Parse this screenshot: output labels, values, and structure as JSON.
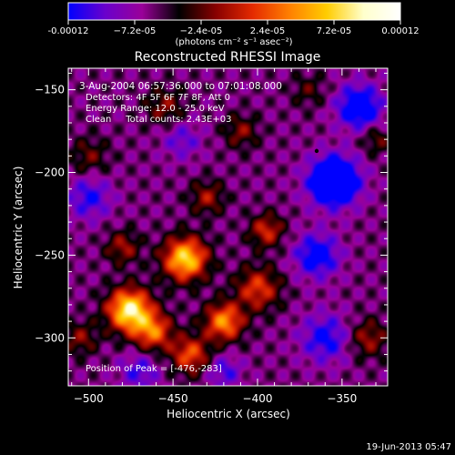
{
  "chart_data": {
    "type": "heatmap",
    "title": "Reconstructed RHESSI Image",
    "xlabel": "Heliocentric X (arcsec)",
    "ylabel": "Heliocentric Y (arcsec)",
    "xlim": [
      -512,
      -323
    ],
    "ylim": [
      -329,
      -137
    ],
    "x_ticks": [
      -500,
      -450,
      -400,
      -350
    ],
    "y_ticks": [
      -150,
      -200,
      -250,
      -300
    ],
    "colorbar": {
      "range": [
        -0.00012,
        0.00012
      ],
      "ticks": [
        -0.00012,
        -7.2e-05,
        -2.4e-05,
        2.4e-05,
        7.2e-05,
        0.00012
      ],
      "tick_labels": [
        "-0.00012",
        "−7.2e-05",
        "−2.4e-05",
        "2.4e-05",
        "7.2e-05",
        "0.00012"
      ],
      "unit_label": "(photons cm⁻² s⁻¹ asec⁻²)",
      "stops": [
        "#0000ff",
        "#6a00cc",
        "#9a0099",
        "#000000",
        "#880000",
        "#e52a00",
        "#ff8000",
        "#ffcc00",
        "#ffffcc",
        "#ffffff"
      ]
    },
    "annotations": [
      "3-Aug-2004 06:57:36.000 to 07:01:08.000",
      "Detectors: 4F 5F 6F 7F 8F, Att 0",
      "Energy Range: 12.0 - 25.0 keV",
      "Clean     Total counts: 2.43E+03"
    ],
    "peak_label": "Position of Peak = [-476,-283]",
    "marker": {
      "x": -365,
      "y": -187
    },
    "sources": [
      {
        "x": -476,
        "y": -283,
        "amp": 1.0,
        "sigma": 9
      },
      {
        "x": -443,
        "y": -252,
        "amp": 0.9,
        "sigma": 9
      },
      {
        "x": -420,
        "y": -290,
        "amp": 0.7,
        "sigma": 8
      },
      {
        "x": -462,
        "y": -296,
        "amp": 0.6,
        "sigma": 8
      },
      {
        "x": -440,
        "y": -310,
        "amp": 0.55,
        "sigma": 8
      },
      {
        "x": -400,
        "y": -270,
        "amp": 0.5,
        "sigma": 9
      },
      {
        "x": -395,
        "y": -235,
        "amp": 0.45,
        "sigma": 7
      },
      {
        "x": -430,
        "y": -215,
        "amp": 0.35,
        "sigma": 7
      },
      {
        "x": -410,
        "y": -175,
        "amp": 0.3,
        "sigma": 7
      },
      {
        "x": -480,
        "y": -245,
        "amp": 0.35,
        "sigma": 7
      },
      {
        "x": -505,
        "y": -300,
        "amp": 0.3,
        "sigma": 7
      },
      {
        "x": -500,
        "y": -190,
        "amp": 0.25,
        "sigma": 8
      },
      {
        "x": -455,
        "y": -160,
        "amp": 0.3,
        "sigma": 8
      },
      {
        "x": -335,
        "y": -300,
        "amp": 0.35,
        "sigma": 8
      },
      {
        "x": -330,
        "y": -180,
        "amp": 0.25,
        "sigma": 6
      },
      {
        "x": -370,
        "y": -150,
        "amp": 0.2,
        "sigma": 7
      },
      {
        "x": -355,
        "y": -205,
        "amp": -0.9,
        "sigma": 10
      },
      {
        "x": -340,
        "y": -160,
        "amp": -0.6,
        "sigma": 9
      },
      {
        "x": -365,
        "y": -250,
        "amp": -0.5,
        "sigma": 9
      },
      {
        "x": -360,
        "y": -300,
        "amp": -0.4,
        "sigma": 10
      },
      {
        "x": -500,
        "y": -215,
        "amp": -0.35,
        "sigma": 9
      },
      {
        "x": -445,
        "y": -180,
        "amp": -0.25,
        "sigma": 8
      },
      {
        "x": -470,
        "y": -320,
        "amp": -0.3,
        "sigma": 8
      },
      {
        "x": -420,
        "y": -320,
        "amp": -0.3,
        "sigma": 7
      }
    ]
  },
  "footer": {
    "timestamp": "19-Jun-2013 05:47"
  }
}
